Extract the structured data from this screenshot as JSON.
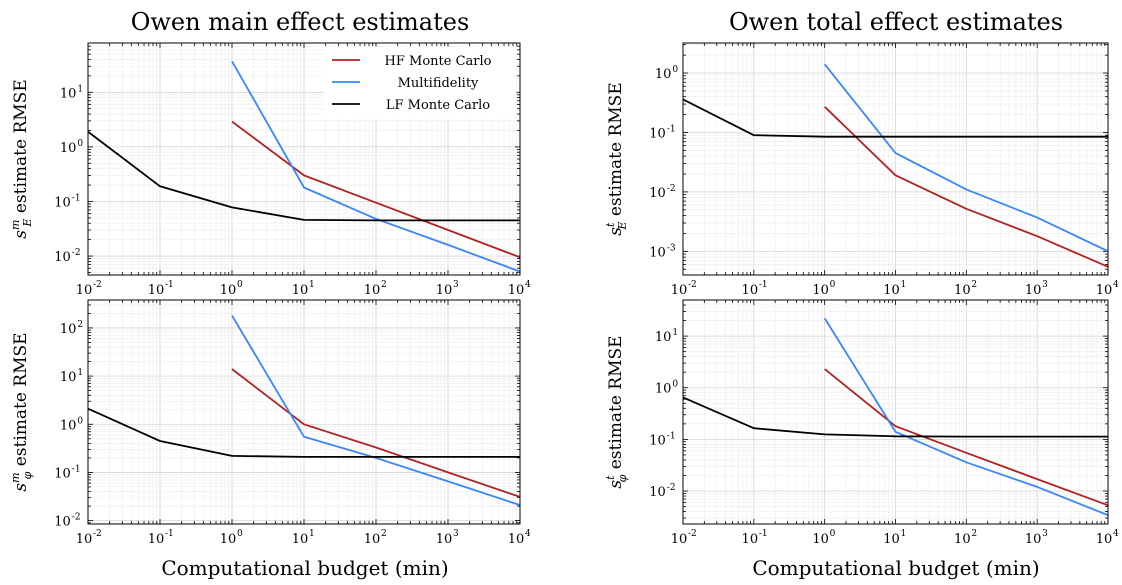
{
  "titles": {
    "left": "Owen main effect estimates",
    "right": "Owen total effect estimates"
  },
  "xlabel": "Computational budget (min)",
  "colors": {
    "hf": "#b22222",
    "mf": "#3a86ff",
    "lf": "#000000"
  },
  "legend": {
    "placement": "top-right",
    "entries": [
      "HF Monte Carlo",
      "Multifidelity",
      "LF Monte Carlo"
    ]
  },
  "chart_data": [
    {
      "id": "tl",
      "type": "line",
      "ylabel": {
        "base": "s",
        "sup": "m",
        "sub": "E",
        "rest": " estimate RMSE"
      },
      "xscale": "log",
      "yscale": "log",
      "xlim": [
        0.01,
        10000
      ],
      "ylim": [
        0.0045,
        80
      ],
      "xticks": [
        {
          "e": "-2"
        },
        {
          "e": "-1"
        },
        {
          "e": "0"
        },
        {
          "e": "1"
        },
        {
          "e": "2"
        },
        {
          "e": "3"
        },
        {
          "e": "4"
        }
      ],
      "yticks": [
        {
          "e": "-2"
        },
        {
          "e": "-1"
        },
        {
          "e": "0"
        },
        {
          "e": "1"
        }
      ],
      "grid": true,
      "series": [
        {
          "name": "HF Monte Carlo",
          "color": "#b22222",
          "x": [
            1,
            10,
            100,
            1000,
            10000
          ],
          "y": [
            2.9,
            0.3,
            0.095,
            0.03,
            0.0095
          ]
        },
        {
          "name": "Multifidelity",
          "color": "#3a86ff",
          "x": [
            1,
            10,
            100,
            1000,
            10000
          ],
          "y": [
            37,
            0.18,
            0.048,
            0.016,
            0.0052
          ]
        },
        {
          "name": "LF Monte Carlo",
          "color": "#000000",
          "x": [
            0.01,
            0.1,
            1,
            10,
            100,
            1000,
            10000
          ],
          "y": [
            1.9,
            0.19,
            0.078,
            0.046,
            0.045,
            0.045,
            0.045
          ]
        }
      ]
    },
    {
      "id": "tr",
      "type": "line",
      "ylabel": {
        "base": "s",
        "sup": "t",
        "sub": "E",
        "rest": " estimate RMSE"
      },
      "xscale": "log",
      "yscale": "log",
      "xlim": [
        0.01,
        10000
      ],
      "ylim": [
        0.0004,
        3.2
      ],
      "xticks": [
        {
          "e": "-2"
        },
        {
          "e": "-1"
        },
        {
          "e": "0"
        },
        {
          "e": "1"
        },
        {
          "e": "2"
        },
        {
          "e": "3"
        },
        {
          "e": "4"
        }
      ],
      "yticks": [
        {
          "e": "-3"
        },
        {
          "e": "-2"
        },
        {
          "e": "-1"
        },
        {
          "e": "0"
        }
      ],
      "grid": true,
      "series": [
        {
          "name": "HF Monte Carlo",
          "color": "#b22222",
          "x": [
            1,
            10,
            100,
            1000,
            10000
          ],
          "y": [
            0.27,
            0.019,
            0.0052,
            0.0018,
            0.00055
          ]
        },
        {
          "name": "Multifidelity",
          "color": "#3a86ff",
          "x": [
            1,
            10,
            100,
            1000,
            10000
          ],
          "y": [
            1.4,
            0.045,
            0.011,
            0.0037,
            0.001
          ]
        },
        {
          "name": "LF Monte Carlo",
          "color": "#000000",
          "x": [
            0.01,
            0.1,
            1,
            10,
            100,
            1000,
            10000
          ],
          "y": [
            0.36,
            0.09,
            0.085,
            0.085,
            0.085,
            0.085,
            0.085
          ]
        }
      ]
    },
    {
      "id": "bl",
      "type": "line",
      "ylabel": {
        "base": "s",
        "sup": "m",
        "sub": "φ",
        "rest": " estimate RMSE"
      },
      "xscale": "log",
      "yscale": "log",
      "xlim": [
        0.01,
        10000
      ],
      "ylim": [
        0.0085,
        380
      ],
      "xticks": [
        {
          "e": "-2"
        },
        {
          "e": "-1"
        },
        {
          "e": "0"
        },
        {
          "e": "1"
        },
        {
          "e": "2"
        },
        {
          "e": "3"
        },
        {
          "e": "4"
        }
      ],
      "yticks": [
        {
          "e": "-2"
        },
        {
          "e": "-1"
        },
        {
          "e": "0"
        },
        {
          "e": "1"
        },
        {
          "e": "2"
        }
      ],
      "grid": true,
      "series": [
        {
          "name": "HF Monte Carlo",
          "color": "#b22222",
          "x": [
            1,
            10,
            100,
            1000,
            10000
          ],
          "y": [
            14,
            1.0,
            0.33,
            0.1,
            0.031
          ]
        },
        {
          "name": "Multifidelity",
          "color": "#3a86ff",
          "x": [
            1,
            10,
            100,
            1000,
            10000
          ],
          "y": [
            180,
            0.55,
            0.2,
            0.065,
            0.021
          ]
        },
        {
          "name": "LF Monte Carlo",
          "color": "#000000",
          "x": [
            0.01,
            0.1,
            1,
            10,
            100,
            1000,
            10000
          ],
          "y": [
            2.1,
            0.45,
            0.22,
            0.21,
            0.21,
            0.21,
            0.21
          ]
        }
      ]
    },
    {
      "id": "br",
      "type": "line",
      "ylabel": {
        "base": "s",
        "sup": "t",
        "sub": "φ",
        "rest": " estimate RMSE"
      },
      "xscale": "log",
      "yscale": "log",
      "xlim": [
        0.01,
        10000
      ],
      "ylim": [
        0.0023,
        50
      ],
      "xticks": [
        {
          "e": "-2"
        },
        {
          "e": "-1"
        },
        {
          "e": "0"
        },
        {
          "e": "1"
        },
        {
          "e": "2"
        },
        {
          "e": "3"
        },
        {
          "e": "4"
        }
      ],
      "yticks": [
        {
          "e": "-2"
        },
        {
          "e": "-1"
        },
        {
          "e": "0"
        },
        {
          "e": "1"
        }
      ],
      "grid": true,
      "series": [
        {
          "name": "HF Monte Carlo",
          "color": "#b22222",
          "x": [
            1,
            10,
            100,
            1000,
            10000
          ],
          "y": [
            2.3,
            0.18,
            0.055,
            0.017,
            0.0053
          ]
        },
        {
          "name": "Multifidelity",
          "color": "#3a86ff",
          "x": [
            1,
            10,
            100,
            1000,
            10000
          ],
          "y": [
            22,
            0.14,
            0.036,
            0.012,
            0.0034
          ]
        },
        {
          "name": "LF Monte Carlo",
          "color": "#000000",
          "x": [
            0.01,
            0.1,
            1,
            10,
            100,
            1000,
            10000
          ],
          "y": [
            0.65,
            0.165,
            0.125,
            0.115,
            0.113,
            0.113,
            0.113
          ]
        }
      ]
    }
  ]
}
